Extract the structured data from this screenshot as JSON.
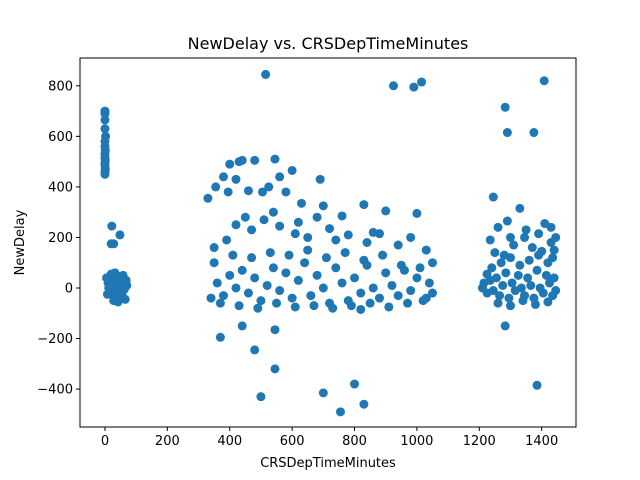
{
  "chart_data": {
    "type": "scatter",
    "title": "NewDelay vs. CRSDepTimeMinutes",
    "xlabel": "CRSDepTimeMinutes",
    "ylabel": "NewDelay",
    "xlim": [
      -80,
      1510
    ],
    "ylim": [
      -550,
      910
    ],
    "xticks": [
      0,
      200,
      400,
      600,
      800,
      1000,
      1200,
      1400
    ],
    "yticks": [
      -400,
      -200,
      0,
      200,
      400,
      600,
      800
    ],
    "ytick_labels": [
      "−400",
      "−200",
      "0",
      "200",
      "400",
      "600",
      "800"
    ],
    "grid": false,
    "marker_color": "#1f77b4",
    "series": [
      {
        "points": [
          [
            0,
            700
          ],
          [
            0,
            690
          ],
          [
            0,
            665
          ],
          [
            0,
            630
          ],
          [
            2,
            600
          ],
          [
            0,
            580
          ],
          [
            0,
            560
          ],
          [
            1,
            545
          ],
          [
            0,
            530
          ],
          [
            0,
            515
          ],
          [
            1,
            505
          ],
          [
            0,
            495
          ],
          [
            0,
            485
          ],
          [
            1,
            470
          ],
          [
            0,
            460
          ],
          [
            0,
            450
          ],
          [
            22,
            245
          ],
          [
            20,
            175
          ],
          [
            28,
            175
          ],
          [
            48,
            210
          ],
          [
            5,
            40
          ],
          [
            10,
            20
          ],
          [
            15,
            -10
          ],
          [
            20,
            55
          ],
          [
            25,
            5
          ],
          [
            30,
            -40
          ],
          [
            35,
            30
          ],
          [
            40,
            -20
          ],
          [
            45,
            45
          ],
          [
            50,
            0
          ],
          [
            55,
            -30
          ],
          [
            60,
            25
          ],
          [
            65,
            -45
          ],
          [
            70,
            10
          ],
          [
            8,
            -25
          ],
          [
            18,
            35
          ],
          [
            28,
            -50
          ],
          [
            38,
            15
          ],
          [
            48,
            -35
          ],
          [
            58,
            50
          ],
          [
            12,
            0
          ],
          [
            32,
            60
          ],
          [
            42,
            -55
          ],
          [
            62,
            -5
          ],
          [
            68,
            30
          ],
          [
            515,
            845
          ],
          [
            925,
            800
          ],
          [
            990,
            795
          ],
          [
            1015,
            815
          ],
          [
            1408,
            820
          ],
          [
            1283,
            715
          ],
          [
            1290,
            615
          ],
          [
            1375,
            615
          ],
          [
            370,
            -195
          ],
          [
            440,
            -150
          ],
          [
            545,
            -165
          ],
          [
            480,
            -245
          ],
          [
            545,
            -320
          ],
          [
            500,
            -430
          ],
          [
            700,
            -415
          ],
          [
            755,
            -490
          ],
          [
            800,
            -380
          ],
          [
            830,
            -460
          ],
          [
            1283,
            -150
          ],
          [
            1385,
            -385
          ],
          [
            400,
            490
          ],
          [
            430,
            500
          ],
          [
            440,
            505
          ],
          [
            480,
            505
          ],
          [
            545,
            510
          ],
          [
            600,
            465
          ],
          [
            690,
            430
          ],
          [
            380,
            440
          ],
          [
            420,
            430
          ],
          [
            560,
            440
          ],
          [
            330,
            355
          ],
          [
            355,
            400
          ],
          [
            395,
            380
          ],
          [
            460,
            385
          ],
          [
            505,
            380
          ],
          [
            525,
            400
          ],
          [
            580,
            380
          ],
          [
            630,
            335
          ],
          [
            700,
            325
          ],
          [
            760,
            285
          ],
          [
            830,
            330
          ],
          [
            900,
            305
          ],
          [
            1000,
            295
          ],
          [
            1245,
            360
          ],
          [
            1330,
            315
          ],
          [
            1290,
            265
          ],
          [
            1410,
            255
          ],
          [
            1430,
            240
          ],
          [
            1260,
            240
          ],
          [
            1350,
            230
          ],
          [
            1390,
            215
          ],
          [
            1300,
            200
          ],
          [
            1235,
            190
          ],
          [
            1445,
            200
          ],
          [
            420,
            250
          ],
          [
            470,
            230
          ],
          [
            510,
            270
          ],
          [
            560,
            245
          ],
          [
            610,
            215
          ],
          [
            650,
            200
          ],
          [
            720,
            235
          ],
          [
            780,
            210
          ],
          [
            840,
            180
          ],
          [
            880,
            215
          ],
          [
            940,
            170
          ],
          [
            980,
            200
          ],
          [
            1030,
            150
          ],
          [
            1050,
            100
          ],
          [
            350,
            160
          ],
          [
            390,
            190
          ],
          [
            450,
            280
          ],
          [
            540,
            300
          ],
          [
            620,
            260
          ],
          [
            680,
            280
          ],
          [
            740,
            190
          ],
          [
            860,
            220
          ],
          [
            340,
            -40
          ],
          [
            360,
            20
          ],
          [
            380,
            -30
          ],
          [
            400,
            50
          ],
          [
            420,
            0
          ],
          [
            440,
            70
          ],
          [
            460,
            -20
          ],
          [
            480,
            40
          ],
          [
            500,
            -50
          ],
          [
            520,
            10
          ],
          [
            540,
            80
          ],
          [
            560,
            -10
          ],
          [
            580,
            60
          ],
          [
            600,
            -40
          ],
          [
            620,
            30
          ],
          [
            640,
            100
          ],
          [
            660,
            -30
          ],
          [
            680,
            50
          ],
          [
            700,
            0
          ],
          [
            720,
            -60
          ],
          [
            740,
            80
          ],
          [
            760,
            20
          ],
          [
            780,
            -50
          ],
          [
            800,
            40
          ],
          [
            820,
            -20
          ],
          [
            840,
            90
          ],
          [
            860,
            0
          ],
          [
            880,
            -40
          ],
          [
            900,
            60
          ],
          [
            920,
            10
          ],
          [
            940,
            -30
          ],
          [
            960,
            70
          ],
          [
            980,
            -10
          ],
          [
            1000,
            40
          ],
          [
            1020,
            -50
          ],
          [
            1040,
            20
          ],
          [
            1050,
            -20
          ],
          [
            350,
            100
          ],
          [
            410,
            130
          ],
          [
            470,
            120
          ],
          [
            530,
            140
          ],
          [
            590,
            130
          ],
          [
            650,
            150
          ],
          [
            710,
            120
          ],
          [
            770,
            140
          ],
          [
            830,
            110
          ],
          [
            890,
            130
          ],
          [
            950,
            90
          ],
          [
            1010,
            80
          ],
          [
            370,
            -60
          ],
          [
            430,
            -70
          ],
          [
            490,
            -80
          ],
          [
            550,
            -60
          ],
          [
            610,
            -75
          ],
          [
            670,
            -70
          ],
          [
            730,
            -80
          ],
          [
            790,
            -70
          ],
          [
            850,
            -60
          ],
          [
            910,
            -75
          ],
          [
            970,
            -60
          ],
          [
            1030,
            -40
          ],
          [
            820,
            -85
          ],
          [
            1210,
            0
          ],
          [
            1215,
            20
          ],
          [
            1225,
            -20
          ],
          [
            1235,
            30
          ],
          [
            1245,
            -10
          ],
          [
            1255,
            40
          ],
          [
            1265,
            -30
          ],
          [
            1275,
            10
          ],
          [
            1285,
            60
          ],
          [
            1295,
            -40
          ],
          [
            1305,
            20
          ],
          [
            1315,
            -10
          ],
          [
            1325,
            50
          ],
          [
            1335,
            0
          ],
          [
            1345,
            -30
          ],
          [
            1355,
            40
          ],
          [
            1365,
            10
          ],
          [
            1375,
            -40
          ],
          [
            1385,
            70
          ],
          [
            1395,
            0
          ],
          [
            1405,
            -20
          ],
          [
            1415,
            50
          ],
          [
            1425,
            20
          ],
          [
            1435,
            -30
          ],
          [
            1440,
            40
          ],
          [
            1445,
            -10
          ],
          [
            1240,
            80
          ],
          [
            1270,
            100
          ],
          [
            1300,
            120
          ],
          [
            1330,
            90
          ],
          [
            1360,
            110
          ],
          [
            1390,
            130
          ],
          [
            1420,
            100
          ],
          [
            1440,
            150
          ],
          [
            1260,
            -60
          ],
          [
            1300,
            -70
          ],
          [
            1340,
            -50
          ],
          [
            1380,
            -65
          ],
          [
            1420,
            -55
          ],
          [
            1250,
            140
          ],
          [
            1310,
            170
          ],
          [
            1370,
            160
          ],
          [
            1430,
            180
          ],
          [
            1400,
            145
          ],
          [
            1280,
            130
          ],
          [
            1225,
            55
          ],
          [
            1345,
            200
          ],
          [
            1435,
            120
          ]
        ]
      }
    ]
  }
}
